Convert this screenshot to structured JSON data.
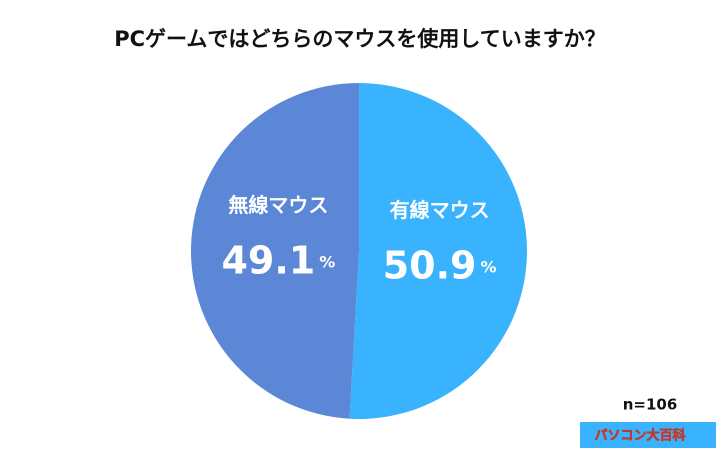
{
  "chart_data": {
    "type": "pie",
    "title": "PCゲームではどちらのマウスを使用していますか？",
    "categories": [
      "有線マウス",
      "無線マウス"
    ],
    "values": [
      50.9,
      49.1
    ],
    "value_labels": [
      "50.9%",
      "49.1%"
    ],
    "colors": [
      "#3ab3fe",
      "#5b87d6"
    ],
    "start_angle": 0,
    "direction": "clockwise",
    "note": "n=106",
    "logo": "パソコン大百科"
  }
}
